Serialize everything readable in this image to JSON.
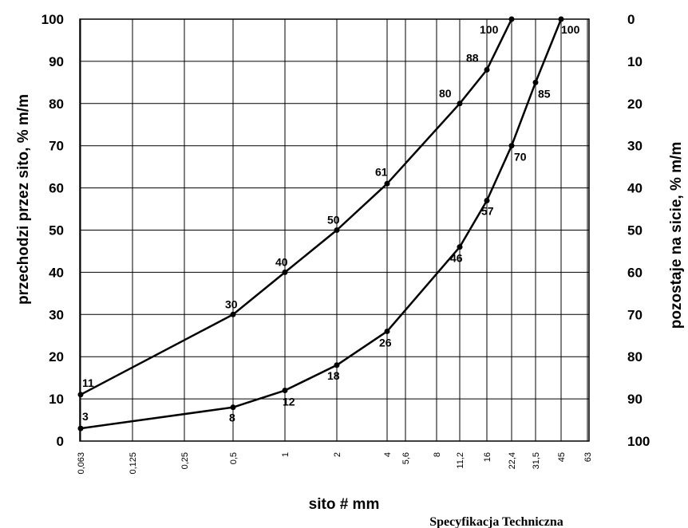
{
  "chart_data": {
    "type": "line",
    "xlabel": "sito # mm",
    "ylabel_left": "przechodzi przez sito, % m/m",
    "ylabel_right": "pozostaje na sicie, % m/m",
    "x_ticks": [
      "0,063",
      "0,125",
      "0,25",
      "0,5",
      "1",
      "2",
      "4",
      "5,6",
      "8",
      "11,2",
      "16",
      "22,4",
      "31,5",
      "45",
      "63"
    ],
    "y_left_ticks": [
      "100",
      "90",
      "80",
      "70",
      "60",
      "50",
      "40",
      "30",
      "20",
      "10",
      "0"
    ],
    "y_right_ticks": [
      "0",
      "10",
      "20",
      "30",
      "40",
      "50",
      "60",
      "70",
      "80",
      "90",
      "100"
    ],
    "ylim": [
      0,
      100
    ],
    "grid": true,
    "series": [
      {
        "points": [
          {
            "x": "0,063",
            "y": 11,
            "label": "11"
          },
          {
            "x": "0,5",
            "y": 30,
            "label": "30"
          },
          {
            "x": "1",
            "y": 40,
            "label": "40"
          },
          {
            "x": "2",
            "y": 50,
            "label": "50"
          },
          {
            "x": "4",
            "y": 61,
            "label": "61"
          },
          {
            "x": "11,2",
            "y": 80,
            "label": "80"
          },
          {
            "x": "16",
            "y": 88,
            "label": "88"
          },
          {
            "x": "22,4",
            "y": 100,
            "label": "100"
          }
        ]
      },
      {
        "points": [
          {
            "x": "0,063",
            "y": 3,
            "label": "3"
          },
          {
            "x": "0,5",
            "y": 8,
            "label": "8"
          },
          {
            "x": "1",
            "y": 12,
            "label": "12"
          },
          {
            "x": "2",
            "y": 18,
            "label": "18"
          },
          {
            "x": "4",
            "y": 26,
            "label": "26"
          },
          {
            "x": "11,2",
            "y": 46,
            "label": "46"
          },
          {
            "x": "16",
            "y": 57,
            "label": "57"
          },
          {
            "x": "22,4",
            "y": 70,
            "label": "70"
          },
          {
            "x": "31,5",
            "y": 85,
            "label": "85"
          },
          {
            "x": "45",
            "y": 100,
            "label": "100"
          }
        ]
      }
    ]
  },
  "footer_text": "Specyfikacja Techniczna"
}
